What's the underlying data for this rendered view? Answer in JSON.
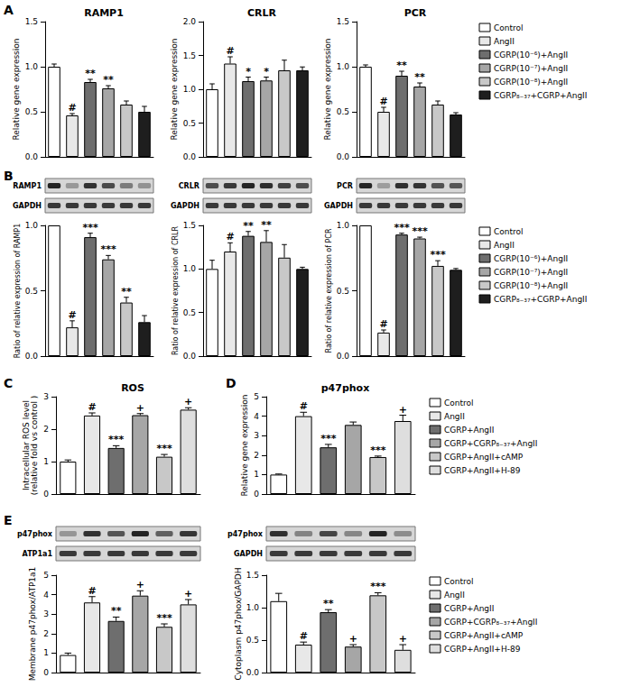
{
  "chart_data": [
    {
      "type": "bar",
      "panel": "A",
      "title": "RAMP1",
      "y_label": "Relative gene expression",
      "categories": [
        "Control",
        "AngII",
        "CGRP(10⁻⁶)+AngII",
        "CGRP(10⁻⁷)+AngII",
        "CGRP(10⁻⁸)+AngII",
        "CGRP₈₋₃₇+CGRP+AngII"
      ],
      "values": [
        1.0,
        0.46,
        0.83,
        0.76,
        0.58,
        0.5
      ],
      "errors": [
        0.03,
        0.02,
        0.03,
        0.03,
        0.04,
        0.06
      ],
      "significance": [
        null,
        "#",
        "**",
        "**",
        null,
        null
      ],
      "colors": [
        "#ffffff",
        "#e8e8e8",
        "#6e6e6e",
        "#a6a6a6",
        "#c8c8c8",
        "#1e1e1e"
      ],
      "ylim": [
        0,
        1.5
      ],
      "yticks": [
        {
          "value": 0,
          "label": "0.0"
        },
        0.5,
        {
          "value": 1,
          "label": "1.0"
        },
        1.5
      ],
      "tick_labels": "y"
    },
    {
      "type": "bar",
      "title": "CRLR",
      "y_label": "Relative gene expression",
      "categories": [
        "Control",
        "AngII",
        "CGRP(10⁻⁶)+AngII",
        "CGRP(10⁻⁷)+AngII",
        "CGRP(10⁻⁸)+AngII",
        "CGRP₈₋₃₇+CGRP+AngII"
      ],
      "values": [
        1.0,
        1.38,
        1.12,
        1.13,
        1.28,
        1.28
      ],
      "errors": [
        0.08,
        0.1,
        0.06,
        0.05,
        0.15,
        0.05
      ],
      "significance": [
        null,
        "#",
        "*",
        "*",
        null,
        null
      ],
      "colors": [
        "#ffffff",
        "#e8e8e8",
        "#6e6e6e",
        "#a6a6a6",
        "#c8c8c8",
        "#1e1e1e"
      ],
      "ylim": [
        0,
        2
      ],
      "yticks": [
        {
          "value": 0,
          "label": "0.0"
        },
        0.5,
        {
          "value": 1,
          "label": "1.0"
        },
        1.5,
        {
          "value": 2,
          "label": "2.0"
        }
      ],
      "tick_labels": "y"
    },
    {
      "type": "bar",
      "title": "PCR",
      "y_label": "Relative gene expression",
      "categories": [
        "Control",
        "AngII",
        "CGRP(10⁻⁶)+AngII",
        "CGRP(10⁻⁷)+AngII",
        "CGRP(10⁻⁸)+AngII",
        "CGRP₈₋₃₇+CGRP+AngII"
      ],
      "values": [
        1.0,
        0.5,
        0.9,
        0.78,
        0.58,
        0.47
      ],
      "errors": [
        0.02,
        0.05,
        0.05,
        0.04,
        0.04,
        0.02
      ],
      "significance": [
        null,
        "#",
        "**",
        "**",
        null,
        null
      ],
      "colors": [
        "#ffffff",
        "#e8e8e8",
        "#6e6e6e",
        "#a6a6a6",
        "#c8c8c8",
        "#1e1e1e"
      ],
      "ylim": [
        0,
        1.5
      ],
      "yticks": [
        {
          "value": 0,
          "label": "0.0"
        },
        0.5,
        {
          "value": 1,
          "label": "1.0"
        },
        1.5
      ],
      "tick_labels": "y",
      "legend": "right"
    },
    {
      "type": "bar",
      "panel": "B",
      "y_label": "Ratio of relative expression of RAMP1",
      "blot": {
        "labels": [
          "RAMP1",
          "GAPDH"
        ]
      },
      "categories": [
        "Control",
        "AngII",
        "CGRP(10⁻⁶)+AngII",
        "CGRP(10⁻⁷)+AngII",
        "CGRP(10⁻⁸)+AngII",
        "CGRP₈₋₃₇+CGRP+AngII"
      ],
      "values": [
        1.0,
        0.22,
        0.91,
        0.74,
        0.41,
        0.26
      ],
      "errors": [
        0.01,
        0.05,
        0.03,
        0.03,
        0.04,
        0.05
      ],
      "significance": [
        null,
        "#",
        "***",
        "***",
        "**",
        null
      ],
      "colors": [
        "#ffffff",
        "#e8e8e8",
        "#6e6e6e",
        "#a6a6a6",
        "#c8c8c8",
        "#1e1e1e"
      ],
      "ylim": [
        0,
        1
      ],
      "yticks": [
        {
          "value": 0,
          "label": "0.0"
        },
        0.5,
        {
          "value": 1,
          "label": "1.0"
        }
      ],
      "tick_labels": "y"
    },
    {
      "type": "bar",
      "y_label": "Ratio of relative expression of CRLR",
      "blot": {
        "labels": [
          "CRLR",
          "GAPDH"
        ]
      },
      "categories": [
        "Control",
        "AngII",
        "CGRP(10⁻⁶)+AngII",
        "CGRP(10⁻⁷)+AngII",
        "CGRP(10⁻⁸)+AngII",
        "CGRP₈₋₃₇+CGRP+AngII"
      ],
      "values": [
        1.0,
        1.2,
        1.38,
        1.31,
        1.13,
        1.0
      ],
      "errors": [
        0.1,
        0.1,
        0.05,
        0.13,
        0.15,
        0.02
      ],
      "significance": [
        null,
        "#",
        "**",
        "**",
        null,
        null
      ],
      "colors": [
        "#ffffff",
        "#e8e8e8",
        "#6e6e6e",
        "#a6a6a6",
        "#c8c8c8",
        "#1e1e1e"
      ],
      "ylim": [
        0,
        1.5
      ],
      "yticks": [
        {
          "value": 0,
          "label": "0.0"
        },
        0.5,
        {
          "value": 1,
          "label": "1.0"
        },
        1.5
      ],
      "tick_labels": "y"
    },
    {
      "type": "bar",
      "y_label": "Ratio of relative expression of PCR",
      "blot": {
        "labels": [
          "PCR",
          "GAPDH"
        ]
      },
      "categories": [
        "Control",
        "AngII",
        "CGRP(10⁻⁶)+AngII",
        "CGRP(10⁻⁷)+AngII",
        "CGRP(10⁻⁸)+AngII",
        "CGRP₈₋₃₇+CGRP+AngII"
      ],
      "values": [
        1.0,
        0.18,
        0.93,
        0.9,
        0.69,
        0.66
      ],
      "errors": [
        0.01,
        0.02,
        0.01,
        0.01,
        0.04,
        0.01
      ],
      "significance": [
        null,
        "#",
        "***",
        "***",
        "***",
        null
      ],
      "colors": [
        "#ffffff",
        "#e8e8e8",
        "#6e6e6e",
        "#a6a6a6",
        "#c8c8c8",
        "#1e1e1e"
      ],
      "ylim": [
        0,
        1
      ],
      "yticks": [
        {
          "value": 0,
          "label": "0.0"
        },
        0.5,
        {
          "value": 1,
          "label": "1.0"
        }
      ],
      "tick_labels": "y",
      "legend": "right"
    },
    {
      "type": "bar",
      "panel": "C",
      "title": "ROS",
      "y_label": "Intracellular ROS level\n(relative fold vs control )",
      "categories": [
        "Control",
        "AngII",
        "CGRP+AngII",
        "CGRP+CGRP₈₋₃₇+AngII",
        "CGRP+AngII+cAMP",
        "CGRP+AngII+H-89"
      ],
      "values": [
        1.0,
        2.42,
        1.42,
        2.43,
        1.15,
        2.6
      ],
      "errors": [
        0.05,
        0.08,
        0.07,
        0.05,
        0.07,
        0.06
      ],
      "significance": [
        null,
        "#",
        "***",
        "+",
        "***",
        "+"
      ],
      "colors": [
        "#ffffff",
        "#e8e8e8",
        "#6e6e6e",
        "#a6a6a6",
        "#c8c8c8",
        "#dedede"
      ],
      "ylim": [
        0,
        3
      ],
      "yticks": [
        0,
        1,
        2,
        3
      ],
      "tick_labels": "y"
    },
    {
      "type": "bar",
      "panel": "D",
      "title": "p47phox",
      "y_label": "Relative gene expression",
      "categories": [
        "Control",
        "AngII",
        "CGRP+AngII",
        "CGRP+CGRP₈₋₃₇+AngII",
        "CGRP+AngII+cAMP",
        "CGRP+AngII+H-89"
      ],
      "values": [
        1.0,
        4.0,
        2.4,
        3.55,
        1.9,
        3.75
      ],
      "errors": [
        0.03,
        0.2,
        0.15,
        0.15,
        0.05,
        0.3
      ],
      "significance": [
        null,
        "#",
        "***",
        null,
        "***",
        "+"
      ],
      "colors": [
        "#ffffff",
        "#e8e8e8",
        "#6e6e6e",
        "#a6a6a6",
        "#c8c8c8",
        "#dedede"
      ],
      "ylim": [
        0,
        5
      ],
      "yticks": [
        0,
        1,
        2,
        3,
        4,
        5
      ],
      "tick_labels": "y",
      "legend": "right"
    },
    {
      "type": "bar",
      "panel": "E",
      "y_label": "Membrane p47phox/ATP1a1",
      "blot": {
        "labels": [
          "p47phox",
          "ATP1a1"
        ]
      },
      "categories": [
        "Control",
        "AngII",
        "CGRP+AngII",
        "CGRP+CGRP₈₋₃₇+AngII",
        "CGRP+AngII+cAMP",
        "CGRP+AngII+H-89"
      ],
      "values": [
        0.9,
        3.6,
        2.65,
        3.95,
        2.35,
        3.5
      ],
      "errors": [
        0.1,
        0.3,
        0.2,
        0.25,
        0.15,
        0.25
      ],
      "significance": [
        null,
        "#",
        "**",
        "+",
        "***",
        "+"
      ],
      "colors": [
        "#ffffff",
        "#e8e8e8",
        "#6e6e6e",
        "#a6a6a6",
        "#c8c8c8",
        "#dedede"
      ],
      "ylim": [
        0,
        5
      ],
      "yticks": [
        0,
        1,
        2,
        3,
        4,
        5
      ],
      "tick_labels": "y"
    },
    {
      "type": "bar",
      "y_label": "Cytoplasm p47phox/GAPDH",
      "blot": {
        "labels": [
          "p47phox",
          "GAPDH"
        ]
      },
      "categories": [
        "Control",
        "AngII",
        "CGRP+AngII",
        "CGRP+CGRP₈₋₃₇+AngII",
        "CGRP+AngII+cAMP",
        "CGRP+AngII+H-89"
      ],
      "values": [
        1.1,
        0.43,
        0.93,
        0.4,
        1.19,
        0.35
      ],
      "errors": [
        0.12,
        0.04,
        0.04,
        0.03,
        0.04,
        0.08
      ],
      "significance": [
        null,
        "#",
        "**",
        "+",
        "***",
        "+"
      ],
      "colors": [
        "#ffffff",
        "#e8e8e8",
        "#6e6e6e",
        "#a6a6a6",
        "#c8c8c8",
        "#dedede"
      ],
      "ylim": [
        0,
        1.5
      ],
      "yticks": [
        {
          "value": 0,
          "label": "0.0"
        },
        0.5,
        {
          "value": 1,
          "label": "1.0"
        },
        1.5
      ],
      "tick_labels": "y",
      "legend": "right"
    }
  ]
}
